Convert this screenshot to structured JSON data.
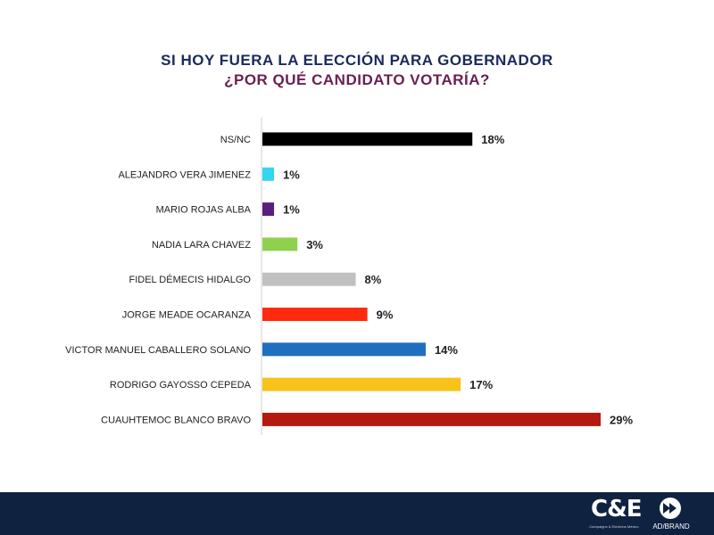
{
  "header": {
    "title": "SI HOY FUERA LA ELECCIÓN PARA GOBERNADOR",
    "subtitle": "¿POR QUÉ CANDIDATO VOTARÍA?"
  },
  "chart_data": {
    "type": "bar",
    "orientation": "horizontal",
    "categories": [
      "NS/NC",
      "ALEJANDRO VERA JIMENEZ",
      "MARIO ROJAS ALBA",
      "NADIA LARA CHAVEZ",
      "FIDEL DÉMECIS HIDALGO",
      "JORGE MEADE OCARANZA",
      "VICTOR MANUEL CABALLERO SOLANO",
      "RODRIGO GAYOSSO CEPEDA",
      "CUAUHTEMOC BLANCO BRAVO"
    ],
    "values": [
      18,
      1,
      1,
      3,
      8,
      9,
      14,
      17,
      29
    ],
    "value_labels": [
      "18%",
      "1%",
      "1%",
      "3%",
      "8%",
      "9%",
      "14%",
      "17%",
      "29%"
    ],
    "colors": [
      "#000000",
      "#33d6f0",
      "#5a1f7a",
      "#8fd14f",
      "#c0c0c0",
      "#ff2a0d",
      "#1f6fbf",
      "#f7c21a",
      "#b3190f"
    ],
    "xlim": [
      0,
      29
    ],
    "grid": false,
    "legend": "none"
  },
  "footer": {
    "logo_primary": "C&E",
    "logo_primary_sub": "Campaigns & Elections México",
    "logo_secondary": "AD/BRAND",
    "colors": {
      "background": "#0f2240"
    }
  }
}
